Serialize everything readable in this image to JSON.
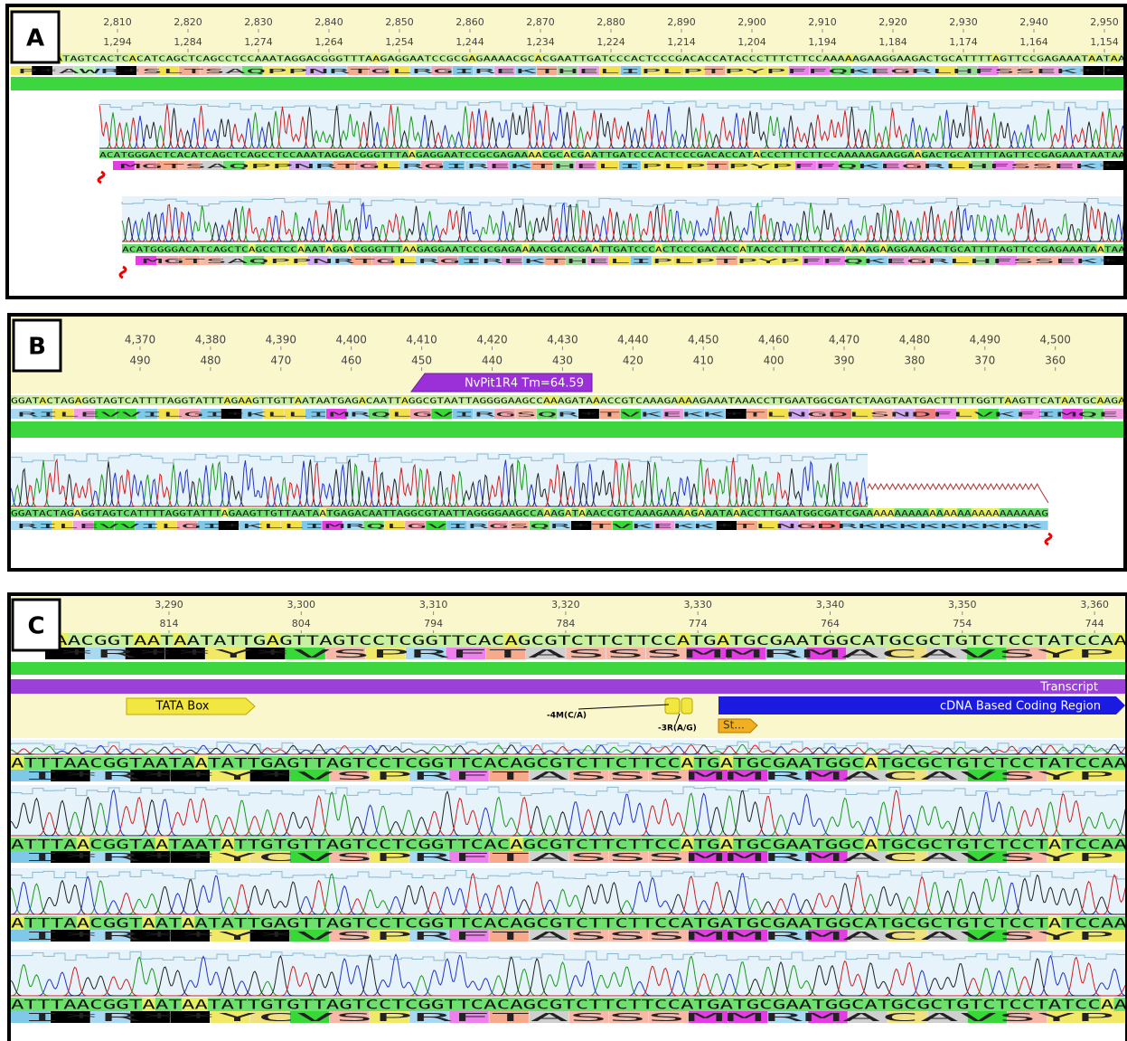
{
  "panels": [
    {
      "label": "A",
      "ruler_top": [
        "2,810",
        "2,820",
        "2,830",
        "2,840",
        "2,850",
        "2,860",
        "2,870",
        "2,880",
        "2,890",
        "2,900",
        "2,910",
        "2,920",
        "2,930",
        "2,940",
        "2,950"
      ],
      "ruler_bottom": [
        "1,294",
        "1,284",
        "1,274",
        "1,264",
        "1,254",
        "1,244",
        "1,234",
        "1,224",
        "1,214",
        "1,204",
        "1,194",
        "1,184",
        "1,174",
        "1,164",
        "1,154"
      ],
      "reference": {
        "sequence": "TTGGCGATAGTCACTCACATCAGCTCAGCCTCCAAATAGGACGGGTTTAAGAGGAATCCGCGAGAAAACGCACGAATTGATCCCACTCCCGACACCATACCCTTTCTTCCAAAAAGAAGGAAGACTGCATTTTAGTTCCGAGAAATAATAA",
        "translation": "P*AWR*SLTSAQPPNRTGLRGIREKTHELIPLPTPYPFFQKEGRLHFSSEK**"
      },
      "reads": [
        {
          "sequence": "ACATGGGACTCACATCAGCTCAGCCTCCAAATAGGACGGGTTTAAGAGGAATCCGCGAGAAAACGCACGAATTGATCCCACTCCCGACACCATACCCTTTCTTCCAAAAAGAAGGAAGACTGCATTTTAGTTCCGAGAAATAATAA",
          "translation": "MGTSAQPPNRTGLRGIREKTHELIPLPTPYPFFQKEGRLHFSSEK*"
        },
        {
          "sequence": "ACATGGGGACATCAGCTCAGCCTCCAAATAGGACGGGTTTAAGAGGAATCCGCGAGAAAACGCACGAATTGATCCCACTCCCGACACCATACCCTTTCTTCCAAAAAGAAGGAAGACTGCATTTTAGTTCCGAGAAATAATAA",
          "translation": "MGTSAQPPNRTGLRGIREKTHELIPLPTPYPFFQKEGRLHFSSEK*"
        }
      ]
    },
    {
      "label": "B",
      "ruler_top": [
        "4,370",
        "4,380",
        "4,390",
        "4,400",
        "4,410",
        "4,420",
        "4,430",
        "4,440",
        "4,450",
        "4,460",
        "4,470",
        "4,480",
        "4,490",
        "4,500"
      ],
      "ruler_bottom": [
        "490",
        "480",
        "470",
        "460",
        "450",
        "440",
        "430",
        "420",
        "410",
        "400",
        "390",
        "380",
        "370",
        "360"
      ],
      "primer": "NvPit1R4 Tm=64.59",
      "reference": {
        "sequence": "GGATACTAGAGGTAGTCATTTTAGGTATTTAGAAGTTGTTAATAATGAGACAATTAGGCGTAATTAGGGGAAGCCAAAGATAAACCGTCAAAGAAAAGAAATAAACCTTGAATGGCGATCTAAGTAATGACTTTTTGGTTAAGTTCATAATGCAAGA",
        "translation": "RILEVVILGI*KLLIMRQLGVIRGSQR*TVKEKK*TLNGDLSNDFLVKFIMQE"
      },
      "reads": [
        {
          "sequence": "GGATACTAGAGGTAGTCATTTTAGGTATTTAGAAGTTGTTAATAATGAGACAATTAGGCGTAATTAGGGGAAGCCAAAGATAAACCGTCAAAGAAAAGAAATAAACCTTGAATGGCGATCGAAAAAAAAAAAAAAAAAAAAAAAAAAG",
          "translation": "RILEVVILGI*KLLIMRQLGVIRGSQR*TVKEKK*TLNGDRKKKKKKKKK"
        }
      ]
    },
    {
      "label": "C",
      "ruler_top": [
        "3,290",
        "3,300",
        "3,310",
        "3,320",
        "3,330",
        "3,340",
        "3,350",
        "3,360"
      ],
      "ruler_bottom": [
        "814",
        "804",
        "794",
        "784",
        "774",
        "764",
        "754",
        "744"
      ],
      "annotations": {
        "transcript": "Transcript",
        "tata_box": "TATA Box",
        "coding_region": "cDNA Based Coding Region",
        "variant_1": "-4M(C/A)",
        "variant_2": "-3R(A/G)",
        "start": "St..."
      },
      "reference": {
        "sequence": "AACGGTAATAATATTGAGTTAGTCCTCGGTTCACAGCGTCTTCTTCCATGATGCGAATGGCATGCGCTGTCTCCTATCCAA",
        "translation": "*R**Y*VSPRFTASSSMMRMACAVSYP"
      },
      "reads": [
        {
          "sequence": "ATTTAACGGTAATAATATTGAGTTAGTCCTCGGTTCACAGCGTCTTCTTCCATGATGCGAATGGCATGCGCTGTCTCCTATCCAA",
          "translation": "I*R**Y*VSPRFTASSSMMRMACAVSYP"
        },
        {
          "sequence": "ATTTAACGGTAATAATATTGTGTTAGTCCTCGGTTCACAGCGTCTTCTTCCATGATGCGAATGGCATGCGCTGTCTCCTATCCAA",
          "translation": "I*R**YCVSPRFTASSSMMRMACAVSYP"
        },
        {
          "sequence": "ATTTAACGGTAATAATATTGAGTTAGTCCTCGGTTCACAGCGTCTTCTTCCATGATGCGAATGGCATGCGCTGTCTCCTATCCAA",
          "translation": "I*R**Y*VSPRFTASSSMMRMACAVSYP"
        },
        {
          "sequence": "ATTTAACGGTAATAATATTGTGTTAGTCCTCGGTTCACAGCGTCTTCTTCCATGATGCGAATGGCATGCGCTGTCTCCTATCCAA",
          "translation": "I*R**YCVSPRFTASSSMMRMACAVSYP"
        }
      ]
    }
  ]
}
